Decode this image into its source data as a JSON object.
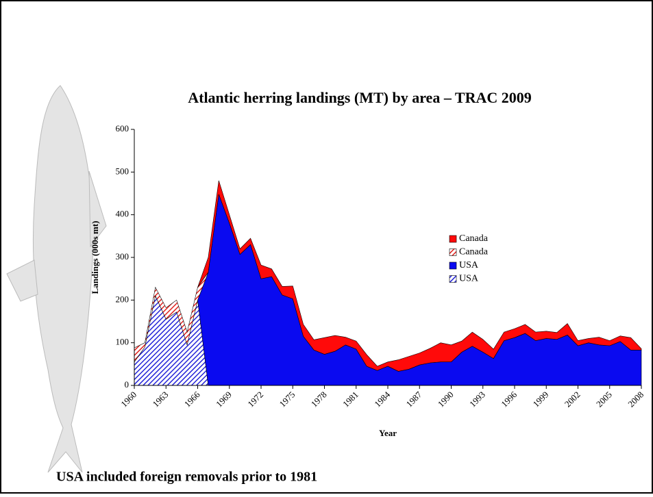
{
  "chart_data": {
    "type": "stacked_area",
    "title": "Atlantic herring landings (MT) by area – TRAC 2009",
    "x_label": "Year",
    "y_label": "Landings (000s mt)",
    "note": "USA included foreign removals prior to 1981",
    "x": [
      1960,
      1961,
      1962,
      1963,
      1964,
      1965,
      1966,
      1967,
      1968,
      1969,
      1970,
      1971,
      1972,
      1973,
      1974,
      1975,
      1976,
      1977,
      1978,
      1979,
      1980,
      1981,
      1982,
      1983,
      1984,
      1985,
      1986,
      1987,
      1988,
      1989,
      1990,
      1991,
      1992,
      1993,
      1994,
      1995,
      1996,
      1997,
      1998,
      1999,
      2000,
      2001,
      2002,
      2003,
      2004,
      2005,
      2006,
      2007,
      2008
    ],
    "xlim": [
      1960,
      2008
    ],
    "xticks": [
      1960,
      1963,
      1966,
      1969,
      1972,
      1975,
      1978,
      1981,
      1984,
      1987,
      1990,
      1993,
      1996,
      1999,
      2002,
      2005,
      2008
    ],
    "ylim": [
      0,
      600
    ],
    "yticks": [
      0,
      100,
      200,
      300,
      400,
      500,
      600
    ],
    "series": [
      {
        "name": "USA",
        "color": "#2323d8",
        "hatched": true,
        "values": [
          55,
          90,
          210,
          155,
          172,
          95,
          200,
          0,
          null,
          null,
          null,
          null,
          null,
          null,
          null,
          null,
          null,
          null,
          null,
          null,
          null,
          null,
          null,
          null,
          null,
          null,
          null,
          null,
          null,
          null,
          null,
          null,
          null,
          null,
          null,
          null,
          null,
          null,
          null,
          null,
          null,
          null,
          null,
          null,
          null,
          null,
          null,
          null,
          null
        ]
      },
      {
        "name": "USA",
        "color": "#0a0af0",
        "hatched": false,
        "values": [
          null,
          null,
          null,
          null,
          null,
          null,
          0,
          265,
          448,
          380,
          307,
          330,
          250,
          255,
          212,
          203,
          115,
          83,
          73,
          80,
          95,
          85,
          45,
          35,
          45,
          33,
          38,
          48,
          53,
          55,
          55,
          78,
          92,
          78,
          63,
          105,
          112,
          122,
          105,
          110,
          108,
          118,
          93,
          100,
          95,
          93,
          103,
          83,
          83
        ]
      },
      {
        "name": "Canada",
        "color": "#e0201c",
        "hatched": true,
        "values": [
          33,
          10,
          20,
          27,
          28,
          30,
          30,
          0,
          null,
          null,
          null,
          null,
          null,
          null,
          null,
          null,
          null,
          null,
          null,
          null,
          null,
          null,
          null,
          null,
          null,
          null,
          null,
          null,
          null,
          null,
          null,
          null,
          null,
          null,
          null,
          null,
          null,
          null,
          null,
          null,
          null,
          null,
          null,
          null,
          null,
          null,
          null,
          null,
          null
        ]
      },
      {
        "name": "Canada",
        "color": "#ff0a0a",
        "hatched": false,
        "values": [
          null,
          null,
          null,
          null,
          null,
          null,
          0,
          35,
          32,
          20,
          13,
          15,
          32,
          18,
          20,
          30,
          28,
          24,
          39,
          37,
          18,
          19,
          27,
          10,
          10,
          27,
          30,
          28,
          34,
          45,
          40,
          26,
          33,
          30,
          22,
          20,
          21,
          21,
          20,
          17,
          16,
          27,
          12,
          10,
          18,
          12,
          13,
          29,
          3
        ]
      }
    ]
  }
}
